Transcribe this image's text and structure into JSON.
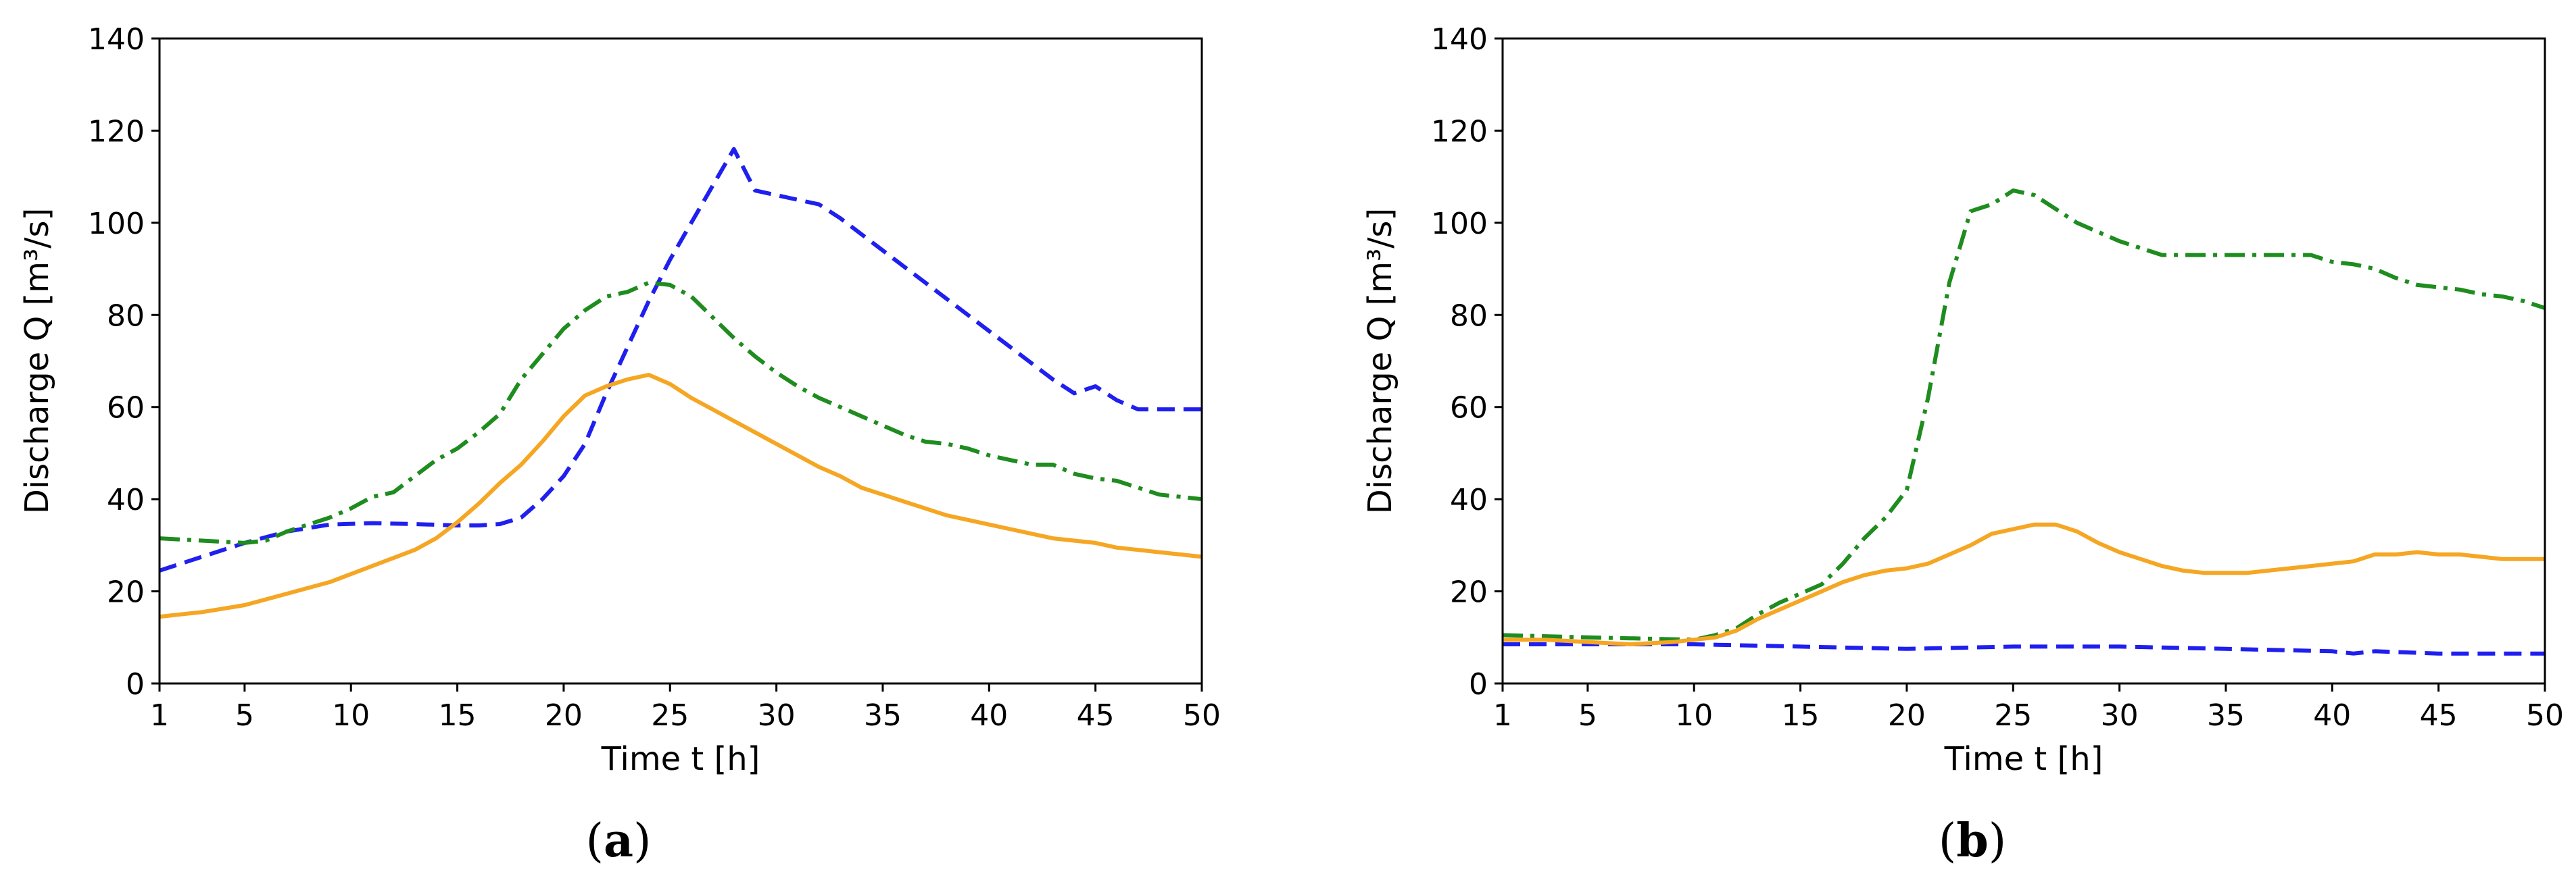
{
  "chart_data": [
    {
      "type": "line",
      "panel_label": "a",
      "xlabel": "Time t [h]",
      "ylabel": "Discharge Q [m³/s]",
      "xlim": [
        1,
        50
      ],
      "ylim": [
        0,
        140
      ],
      "xticks": [
        1,
        5,
        10,
        15,
        20,
        25,
        30,
        35,
        40,
        45,
        50
      ],
      "yticks": [
        0,
        20,
        40,
        60,
        80,
        100,
        120,
        140
      ],
      "grid": false,
      "series": [
        {
          "color": "#1f1fef",
          "style": "dashed",
          "x": [
            1,
            3,
            5,
            7,
            9,
            11,
            13,
            15,
            16,
            17,
            18,
            19,
            20,
            21,
            22,
            23,
            24,
            25,
            26,
            27,
            28,
            29,
            30,
            31,
            32,
            33,
            34,
            35,
            36,
            37,
            38,
            39,
            40,
            41,
            42,
            43,
            44,
            45,
            46,
            47,
            48,
            49,
            50
          ],
          "values": [
            24.5,
            27.5,
            30.5,
            33,
            34.5,
            34.8,
            34.6,
            34.3,
            34.3,
            34.6,
            36,
            40,
            45,
            52,
            63,
            73,
            83,
            92,
            100,
            108,
            116,
            107,
            106,
            105,
            104,
            101,
            97.5,
            94,
            90.5,
            87,
            83.5,
            80,
            76.5,
            73,
            69.5,
            66,
            63,
            64.5,
            61.5,
            59.5,
            59.5,
            59.5,
            59.5
          ]
        },
        {
          "color": "#1e8c1e",
          "style": "dashdot",
          "x": [
            1,
            3,
            5,
            6,
            7,
            9,
            10,
            11,
            12,
            13,
            14,
            15,
            16,
            17,
            18,
            19,
            20,
            21,
            22,
            23,
            24,
            25,
            26,
            27,
            28,
            29,
            30,
            31,
            32,
            33,
            34,
            35,
            36,
            37,
            38,
            39,
            40,
            41,
            42,
            43,
            44,
            45,
            46,
            47,
            48,
            49,
            50
          ],
          "values": [
            31.5,
            31,
            30.5,
            31,
            33,
            36,
            38,
            40.5,
            41.5,
            45,
            48.5,
            51,
            54.5,
            58.5,
            66,
            71.5,
            77,
            81,
            84,
            85,
            87,
            86.5,
            84,
            79.5,
            75,
            71,
            67.5,
            64.5,
            62,
            60,
            58,
            56,
            54,
            52.5,
            52,
            51,
            49.5,
            48.5,
            47.5,
            47.5,
            45.5,
            44.5,
            44,
            42.5,
            41,
            40.5,
            40
          ]
        },
        {
          "color": "#f5a623",
          "style": "solid",
          "x": [
            1,
            3,
            5,
            7,
            9,
            11,
            13,
            14,
            15,
            16,
            17,
            18,
            19,
            20,
            21,
            22,
            23,
            24,
            25,
            26,
            27,
            28,
            29,
            30,
            31,
            32,
            33,
            34,
            35,
            36,
            37,
            38,
            39,
            40,
            41,
            42,
            43,
            44,
            45,
            46,
            47,
            48,
            49,
            50
          ],
          "values": [
            14.5,
            15.5,
            17,
            19.5,
            22,
            25.5,
            29,
            31.5,
            35,
            39,
            43.5,
            47.5,
            52.5,
            58,
            62.5,
            64.5,
            66,
            67,
            65,
            62,
            59.5,
            57,
            54.5,
            52,
            49.5,
            47,
            45,
            42.5,
            41,
            39.5,
            38,
            36.5,
            35.5,
            34.5,
            33.5,
            32.5,
            31.5,
            31,
            30.5,
            29.5,
            29,
            28.5,
            28,
            27.5
          ]
        }
      ]
    },
    {
      "type": "line",
      "panel_label": "b",
      "xlabel": "Time t [h]",
      "ylabel": "Discharge Q [m³/s]",
      "xlim": [
        1,
        50
      ],
      "ylim": [
        0,
        140
      ],
      "xticks": [
        1,
        5,
        10,
        15,
        20,
        25,
        30,
        35,
        40,
        45,
        50
      ],
      "yticks": [
        0,
        20,
        40,
        60,
        80,
        100,
        120,
        140
      ],
      "grid": false,
      "series": [
        {
          "color": "#1f1fef",
          "style": "dashed",
          "x": [
            1,
            5,
            10,
            15,
            20,
            25,
            30,
            35,
            40,
            41,
            42,
            45,
            50
          ],
          "values": [
            8.5,
            8.5,
            8.5,
            8,
            7.5,
            8,
            8,
            7.5,
            7,
            6.5,
            7,
            6.5,
            6.5
          ]
        },
        {
          "color": "#1e8c1e",
          "style": "dashdot",
          "x": [
            1,
            5,
            10,
            11,
            12,
            13,
            14,
            15,
            16,
            17,
            18,
            19,
            20,
            21,
            22,
            23,
            24,
            25,
            26,
            27,
            28,
            29,
            30,
            31,
            32,
            33,
            34,
            35,
            36,
            37,
            38,
            39,
            40,
            41,
            42,
            43,
            44,
            45,
            46,
            47,
            48,
            49,
            50
          ],
          "values": [
            10.5,
            10,
            9.5,
            10.5,
            12,
            15,
            17.5,
            19.5,
            21.5,
            26,
            31.5,
            36,
            42,
            62,
            87,
            102.5,
            104,
            107,
            106,
            103,
            100,
            98,
            96,
            94.5,
            93,
            93,
            93,
            93,
            93,
            93,
            93,
            93,
            91.5,
            91,
            90,
            88,
            86.5,
            86,
            85.5,
            84.5,
            84,
            83,
            81.5
          ]
        },
        {
          "color": "#f5a623",
          "style": "solid",
          "x": [
            1,
            3,
            5,
            7,
            9,
            10,
            11,
            12,
            13,
            14,
            15,
            16,
            17,
            18,
            19,
            20,
            21,
            22,
            23,
            24,
            25,
            26,
            27,
            28,
            29,
            30,
            31,
            32,
            33,
            34,
            35,
            36,
            37,
            38,
            39,
            40,
            41,
            42,
            43,
            44,
            45,
            46,
            47,
            48,
            49,
            50
          ],
          "values": [
            9.5,
            9.5,
            9,
            8.5,
            9,
            9.5,
            10,
            11.5,
            14,
            16,
            18,
            20,
            22,
            23.5,
            24.5,
            25,
            26,
            28,
            30,
            32.5,
            33.5,
            34.5,
            34.5,
            33,
            30.5,
            28.5,
            27,
            25.5,
            24.5,
            24,
            24,
            24,
            24.5,
            25,
            25.5,
            26,
            26.5,
            28,
            28,
            28.5,
            28,
            28,
            27.5,
            27,
            27,
            27
          ]
        }
      ]
    }
  ]
}
